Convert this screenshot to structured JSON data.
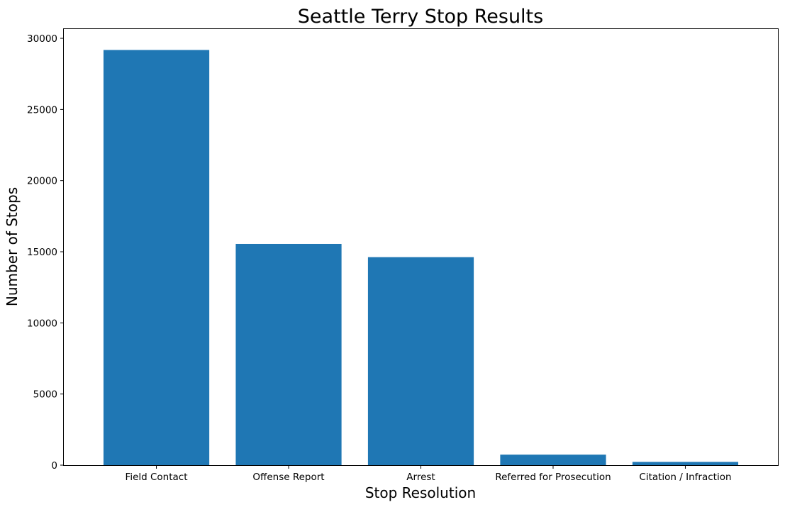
{
  "chart_data": {
    "type": "bar",
    "title": "Seattle Terry Stop Results",
    "xlabel": "Stop Resolution",
    "ylabel": "Number of Stops",
    "categories": [
      "Field Contact",
      "Offense Report",
      "Arrest",
      "Referred for Prosecution",
      "Citation / Infraction"
    ],
    "values": [
      29180,
      15550,
      14620,
      740,
      230
    ],
    "ylim": [
      0,
      30650
    ],
    "yticks": [
      0,
      5000,
      10000,
      15000,
      20000,
      25000,
      30000
    ],
    "grid": false,
    "bar_color": "#1f77b4"
  }
}
